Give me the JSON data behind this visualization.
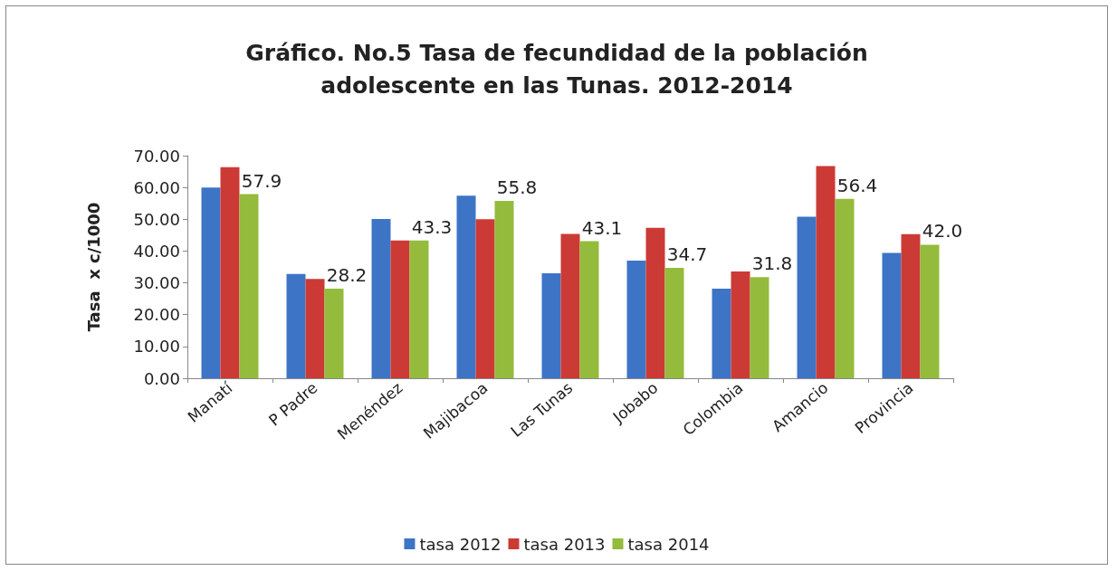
{
  "chart_data": {
    "type": "bar",
    "title": "Gráfico. No.5 Tasa de fecundidad de la población\nadolescente en las Tunas. 2012-2014",
    "ylabel": "Tasa  x c/1000",
    "categories": [
      "Manatí",
      "P Padre",
      "Menéndez",
      "Majibacoa",
      "Las Tunas",
      "Jobabo",
      "Colombia",
      "Amancio",
      "Provincia"
    ],
    "series": [
      {
        "name": "tasa 2012",
        "color": "#3d74c6",
        "values": [
          60.0,
          32.8,
          50.1,
          57.4,
          33.0,
          37.0,
          28.2,
          50.8,
          39.4
        ]
      },
      {
        "name": "tasa 2013",
        "color": "#cc3a36",
        "values": [
          66.4,
          31.2,
          43.3,
          50.0,
          45.4,
          47.3,
          33.6,
          66.7,
          45.3
        ]
      },
      {
        "name": "tasa 2014",
        "color": "#94bb3c",
        "values": [
          57.9,
          28.2,
          43.3,
          55.8,
          43.1,
          34.7,
          31.8,
          56.4,
          42.0
        ],
        "value_labels": [
          "57.9",
          "28.2",
          "43.3",
          "55.8",
          "43.1",
          "34.7",
          "31.8",
          "56.4",
          "42.0"
        ]
      }
    ],
    "ylim": [
      0,
      70
    ],
    "yticks": [
      {
        "value": 0,
        "label": "0.00"
      },
      {
        "value": 10,
        "label": "10.00"
      },
      {
        "value": 20,
        "label": "20.00"
      },
      {
        "value": 30,
        "label": "30.00"
      },
      {
        "value": 40,
        "label": "40.00"
      },
      {
        "value": 50,
        "label": "50.00"
      },
      {
        "value": 60,
        "label": "60.00"
      },
      {
        "value": 70,
        "label": "70.00"
      }
    ],
    "grid": false,
    "legend": "bottom"
  }
}
